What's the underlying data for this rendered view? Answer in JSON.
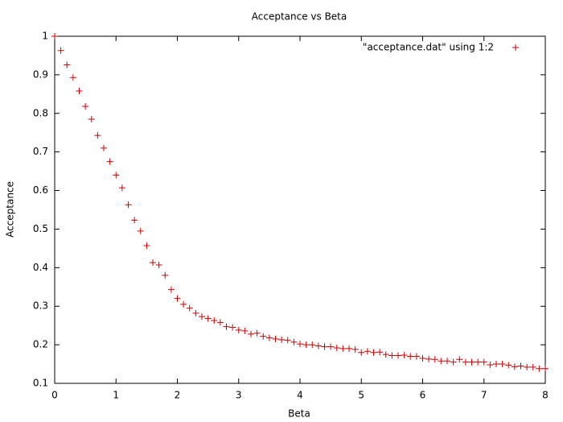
{
  "chart_data": {
    "type": "scatter",
    "title": "Acceptance vs Beta",
    "x_label": "Beta",
    "y_label": "Acceptance",
    "xlim": [
      0,
      8
    ],
    "xticks": [
      0,
      1,
      2,
      3,
      4,
      5,
      6,
      7,
      8
    ],
    "ylim": [
      0.1,
      1
    ],
    "yticks": [
      0.1,
      0.2,
      0.3,
      0.4,
      0.5,
      0.6,
      0.7,
      0.8,
      0.9,
      1
    ],
    "grid": false,
    "legend_position": "upper-right",
    "x": [
      0,
      0.1,
      0.2,
      0.3,
      0.4,
      0.5,
      0.6,
      0.7,
      0.8,
      0.9,
      1.0,
      1.1,
      1.2,
      1.3,
      1.4,
      1.5,
      1.6,
      1.7,
      1.8,
      1.9,
      2.0,
      2.1,
      2.2,
      2.3,
      2.4,
      2.5,
      2.6,
      2.7,
      2.8,
      2.9,
      3.0,
      3.1,
      3.2,
      3.3,
      3.4,
      3.5,
      3.6,
      3.7,
      3.8,
      3.9,
      4.0,
      4.1,
      4.2,
      4.3,
      4.4,
      4.5,
      4.6,
      4.7,
      4.8,
      4.9,
      5.0,
      5.1,
      5.2,
      5.3,
      5.4,
      5.5,
      5.6,
      5.7,
      5.8,
      5.9,
      6.0,
      6.1,
      6.2,
      6.3,
      6.4,
      6.5,
      6.6,
      6.7,
      6.8,
      6.9,
      7.0,
      7.1,
      7.2,
      7.3,
      7.4,
      7.5,
      7.6,
      7.7,
      7.8,
      7.9,
      8.0
    ],
    "series": [
      {
        "name": "\"acceptance.dat\" using 1:2",
        "color": "#cc0000",
        "values": [
          1.0,
          0.963,
          0.926,
          0.893,
          0.858,
          0.818,
          0.785,
          0.743,
          0.71,
          0.675,
          0.64,
          0.607,
          0.563,
          0.523,
          0.495,
          0.457,
          0.413,
          0.407,
          0.38,
          0.343,
          0.32,
          0.305,
          0.295,
          0.282,
          0.273,
          0.268,
          0.263,
          0.258,
          0.247,
          0.245,
          0.238,
          0.236,
          0.228,
          0.23,
          0.222,
          0.218,
          0.215,
          0.213,
          0.212,
          0.207,
          0.202,
          0.2,
          0.2,
          0.197,
          0.195,
          0.195,
          0.192,
          0.19,
          0.19,
          0.188,
          0.18,
          0.183,
          0.18,
          0.181,
          0.175,
          0.172,
          0.172,
          0.173,
          0.17,
          0.17,
          0.165,
          0.163,
          0.162,
          0.158,
          0.158,
          0.155,
          0.162,
          0.155,
          0.155,
          0.155,
          0.155,
          0.148,
          0.15,
          0.15,
          0.147,
          0.143,
          0.145,
          0.142,
          0.142,
          0.138,
          0.138
        ]
      }
    ]
  }
}
